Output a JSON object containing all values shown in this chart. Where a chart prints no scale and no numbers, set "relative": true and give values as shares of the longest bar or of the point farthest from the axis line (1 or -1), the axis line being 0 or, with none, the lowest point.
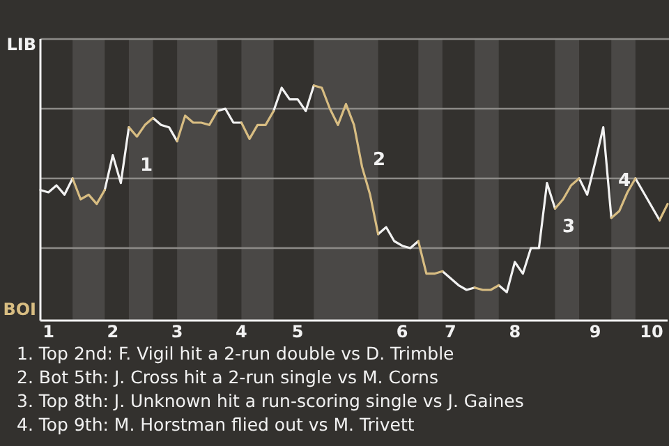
{
  "chart_data": {
    "type": "line",
    "relative": true,
    "categories": [
      null,
      "1",
      null,
      null,
      null,
      null,
      null,
      null,
      null,
      "2",
      null,
      null,
      null,
      null,
      null,
      null,
      null,
      "3",
      null,
      null,
      null,
      null,
      null,
      null,
      null,
      "4",
      null,
      null,
      null,
      null,
      null,
      null,
      "5",
      null,
      null,
      null,
      null,
      null,
      null,
      null,
      null,
      null,
      null,
      null,
      null,
      "6",
      null,
      null,
      null,
      null,
      null,
      "7",
      null,
      null,
      null,
      null,
      null,
      null,
      null,
      "8",
      null,
      null,
      null,
      null,
      null,
      null,
      null,
      null,
      null,
      "9",
      null,
      null,
      null,
      null,
      null,
      null,
      "10",
      null,
      null
    ],
    "series": [
      {
        "color": "#f2f2f2",
        "values": [
          0.55,
          0.54,
          0.57,
          0.53,
          0.6,
          null,
          null,
          null,
          0.55,
          0.7,
          0.58,
          0.82,
          null,
          null,
          0.86,
          0.83,
          0.82,
          0.76,
          null,
          null,
          null,
          null,
          0.89,
          0.9,
          0.84,
          0.84,
          null,
          null,
          null,
          0.89,
          0.99,
          0.94,
          0.94,
          0.89,
          1,
          null,
          null,
          null,
          null,
          null,
          null,
          null,
          0.36,
          0.39,
          0.33,
          0.31,
          0.3,
          0.33,
          null,
          null,
          0.2,
          0.17,
          0.14,
          0.12,
          0.13,
          null,
          null,
          0.14,
          0.11,
          0.24,
          0.19,
          0.3,
          0.3,
          0.58,
          0.47,
          null,
          null,
          0.6,
          0.53,
          0.67,
          0.82,
          0.43,
          null,
          null,
          0.6,
          0.54,
          0.48,
          0.42,
          null
        ]
      },
      {
        "color": "#d8bd82",
        "values": [
          null,
          null,
          null,
          null,
          0.6,
          0.51,
          0.53,
          0.49,
          0.55,
          null,
          null,
          0.82,
          0.78,
          0.83,
          0.86,
          null,
          null,
          0.76,
          0.87,
          0.84,
          0.84,
          0.83,
          0.89,
          null,
          null,
          0.84,
          0.77,
          0.83,
          0.83,
          0.89,
          null,
          null,
          null,
          null,
          1,
          0.99,
          0.9,
          0.83,
          0.92,
          0.83,
          0.65,
          0.53,
          0.36,
          null,
          null,
          null,
          null,
          0.33,
          0.19,
          0.19,
          0.2,
          null,
          null,
          null,
          0.13,
          0.12,
          0.12,
          0.14,
          null,
          null,
          null,
          null,
          null,
          null,
          0.47,
          0.51,
          0.57,
          0.6,
          null,
          null,
          null,
          0.43,
          0.46,
          0.54,
          0.6,
          null,
          null,
          0.42,
          0.49
        ]
      }
    ],
    "grid": "y",
    "annotations": [
      "LIB",
      "BOI",
      "1",
      "2",
      "3",
      "4",
      "1. Top 2nd: F. Vigil hit a 2-run double vs D. Trimble",
      "2. Bot 5th: J. Cross hit a 2-run single vs M. Corns",
      "3. Top 8th: J. Unknown hit a run-scoring single vs J. Gaines",
      "4. Top 9th: M. Horstman flied out vs M. Trivett"
    ]
  }
}
